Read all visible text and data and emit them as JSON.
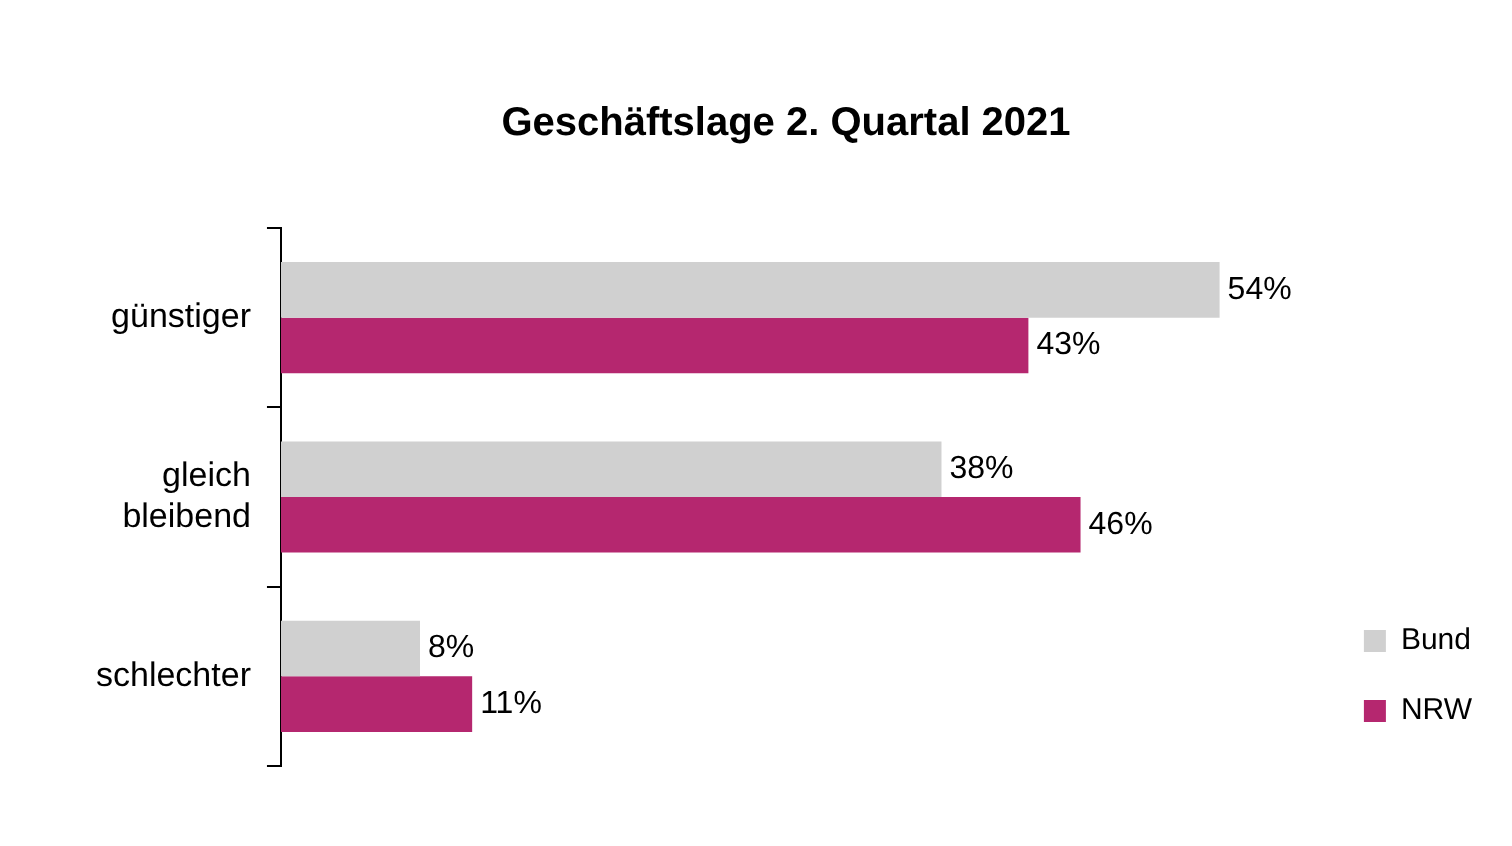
{
  "chart_data": {
    "type": "bar",
    "orientation": "horizontal",
    "title": "Geschäftslage 2. Quartal 2021",
    "categories": [
      "günstiger",
      "gleich bleibend",
      "schlechter"
    ],
    "tick_labels": "y",
    "legend": "bottom right",
    "series": [
      {
        "name": "Bund",
        "color": "#d0d0d0",
        "values": [
          54,
          38,
          8
        ],
        "value_labels": [
          "54%",
          "38%",
          "8%"
        ]
      },
      {
        "name": "NRW",
        "color": "#b5276f",
        "values": [
          43,
          46,
          11
        ],
        "value_labels": [
          "43%",
          "46%",
          "11%"
        ]
      }
    ]
  }
}
